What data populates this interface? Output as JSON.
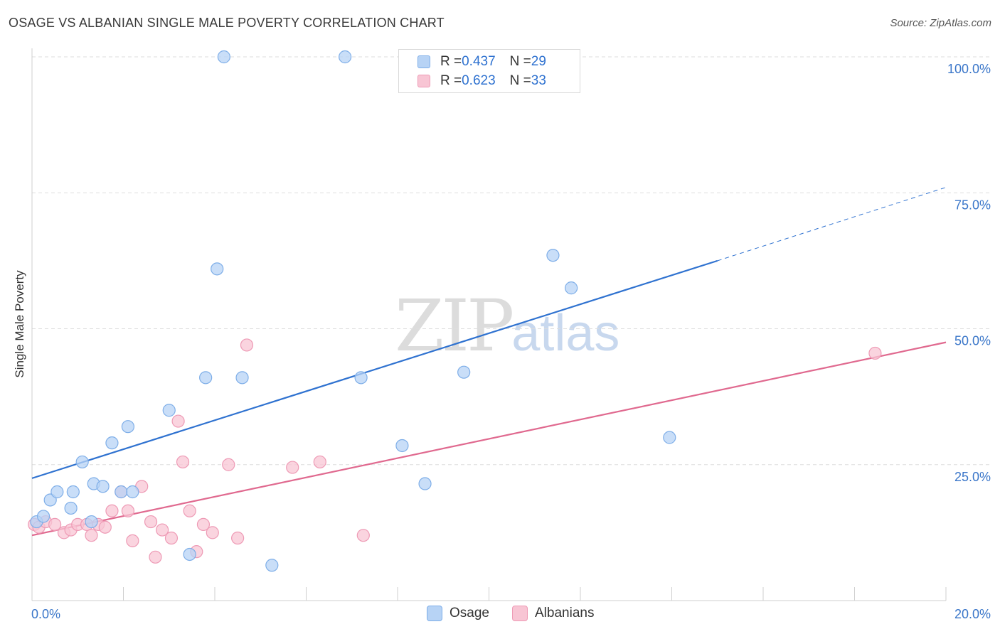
{
  "title": "OSAGE VS ALBANIAN SINGLE MALE POVERTY CORRELATION CHART",
  "source": "Source: ZipAtlas.com",
  "watermark": {
    "zip": "ZIP",
    "atlas": "atlas"
  },
  "colors": {
    "osage_fill": "#b7d3f5",
    "osage_stroke": "#7eaee8",
    "osage_line": "#2f72d0",
    "alb_fill": "#f8c5d4",
    "alb_stroke": "#ee9ab5",
    "alb_line": "#e0698f",
    "grid": "#dddddd",
    "tick_label": "#3a76c9"
  },
  "legend_top": [
    {
      "r_label": "R = ",
      "r_value": "0.437",
      "n_label": "N = ",
      "n_value": "29"
    },
    {
      "r_label": "R = ",
      "r_value": "0.623",
      "n_label": "N = ",
      "n_value": "33"
    }
  ],
  "legend_bottom": [
    "Osage",
    "Albanians"
  ],
  "chart_data": {
    "type": "scatter",
    "title": "OSAGE VS ALBANIAN SINGLE MALE POVERTY CORRELATION CHART",
    "xlabel": "",
    "ylabel": "Single Male Poverty",
    "xlim": [
      0,
      20
    ],
    "ylim": [
      0,
      100
    ],
    "x_ticks": [
      0,
      2,
      4,
      6,
      8,
      10,
      12,
      14,
      16,
      18,
      20
    ],
    "x_tick_labels": [
      {
        "value": 0,
        "label": "0.0%"
      },
      {
        "value": 20,
        "label": "20.0%"
      }
    ],
    "y_tick_labels": [
      {
        "value": 25,
        "label": "25.0%"
      },
      {
        "value": 50,
        "label": "50.0%"
      },
      {
        "value": 75,
        "label": "75.0%"
      },
      {
        "value": 100,
        "label": "100.0%"
      }
    ],
    "grid": true,
    "series": [
      {
        "name": "Osage",
        "r": 0.437,
        "n": 29,
        "points": [
          [
            0.1,
            14.5
          ],
          [
            0.25,
            15.5
          ],
          [
            0.4,
            18.5
          ],
          [
            0.55,
            20.0
          ],
          [
            0.85,
            17.0
          ],
          [
            0.9,
            20.0
          ],
          [
            1.1,
            25.5
          ],
          [
            1.3,
            14.5
          ],
          [
            1.35,
            21.5
          ],
          [
            1.55,
            21.0
          ],
          [
            1.75,
            29.0
          ],
          [
            1.95,
            20.0
          ],
          [
            2.1,
            32.0
          ],
          [
            2.2,
            20.0
          ],
          [
            3.0,
            35.0
          ],
          [
            3.45,
            8.5
          ],
          [
            3.8,
            41.0
          ],
          [
            4.05,
            61.0
          ],
          [
            4.2,
            100.0
          ],
          [
            4.6,
            41.0
          ],
          [
            5.25,
            6.5
          ],
          [
            6.85,
            100.0
          ],
          [
            7.2,
            41.0
          ],
          [
            8.1,
            28.5
          ],
          [
            8.6,
            21.5
          ],
          [
            9.45,
            42.0
          ],
          [
            11.4,
            63.5
          ],
          [
            11.8,
            57.5
          ],
          [
            13.95,
            30.0
          ]
        ],
        "trend": {
          "x0": 0,
          "y0": 22.5,
          "x1": 15,
          "y1": 62.5,
          "dashed_to_x": 20,
          "dashed_to_y": 76.0
        }
      },
      {
        "name": "Albanians",
        "r": 0.623,
        "n": 33,
        "points": [
          [
            0.05,
            14.0
          ],
          [
            0.15,
            13.5
          ],
          [
            0.3,
            14.5
          ],
          [
            0.5,
            14.0
          ],
          [
            0.7,
            12.5
          ],
          [
            0.85,
            13.0
          ],
          [
            1.0,
            14.0
          ],
          [
            1.2,
            14.0
          ],
          [
            1.3,
            12.0
          ],
          [
            1.45,
            14.0
          ],
          [
            1.6,
            13.5
          ],
          [
            1.75,
            16.5
          ],
          [
            1.95,
            20.0
          ],
          [
            2.1,
            16.5
          ],
          [
            2.2,
            11.0
          ],
          [
            2.4,
            21.0
          ],
          [
            2.6,
            14.5
          ],
          [
            2.7,
            8.0
          ],
          [
            2.85,
            13.0
          ],
          [
            3.05,
            11.5
          ],
          [
            3.2,
            33.0
          ],
          [
            3.3,
            25.5
          ],
          [
            3.45,
            16.5
          ],
          [
            3.6,
            9.0
          ],
          [
            3.75,
            14.0
          ],
          [
            3.95,
            12.5
          ],
          [
            4.3,
            25.0
          ],
          [
            4.5,
            11.5
          ],
          [
            4.7,
            47.0
          ],
          [
            5.7,
            24.5
          ],
          [
            6.3,
            25.5
          ],
          [
            7.25,
            12.0
          ],
          [
            18.45,
            45.5
          ]
        ],
        "trend": {
          "x0": 0,
          "y0": 12.0,
          "x1": 20,
          "y1": 47.5
        }
      }
    ]
  }
}
